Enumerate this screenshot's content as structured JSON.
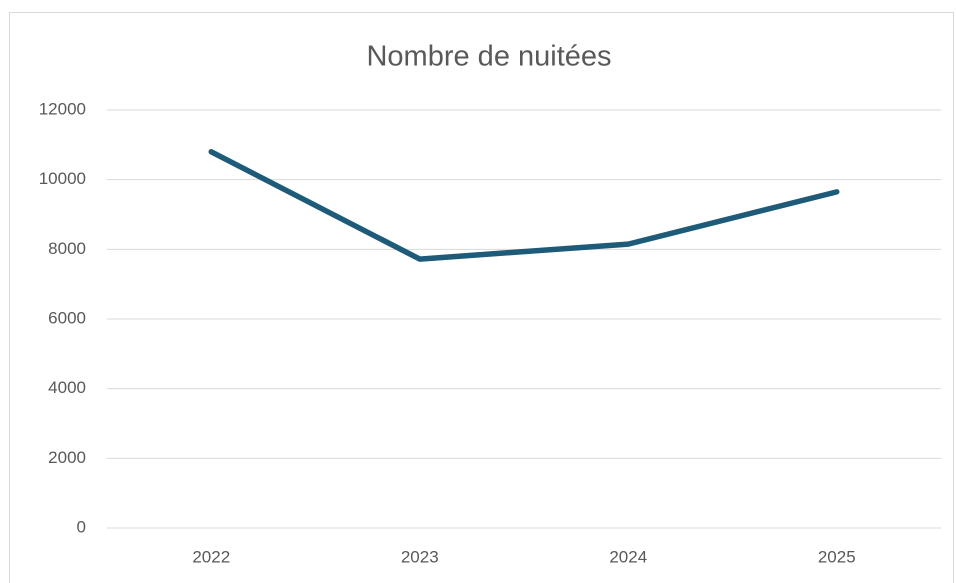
{
  "chart_data": {
    "type": "line",
    "title": "Nombre de nuitées",
    "categories": [
      "2022",
      "2023",
      "2024",
      "2025"
    ],
    "series": [
      {
        "name": "Nombre de nuitées",
        "color": "#1d5b79",
        "values": [
          10800,
          7720,
          8150,
          9650
        ]
      }
    ],
    "ylim": [
      0,
      12000
    ],
    "yticks": [
      0,
      2000,
      4000,
      6000,
      8000,
      10000,
      12000
    ],
    "grid": true
  }
}
